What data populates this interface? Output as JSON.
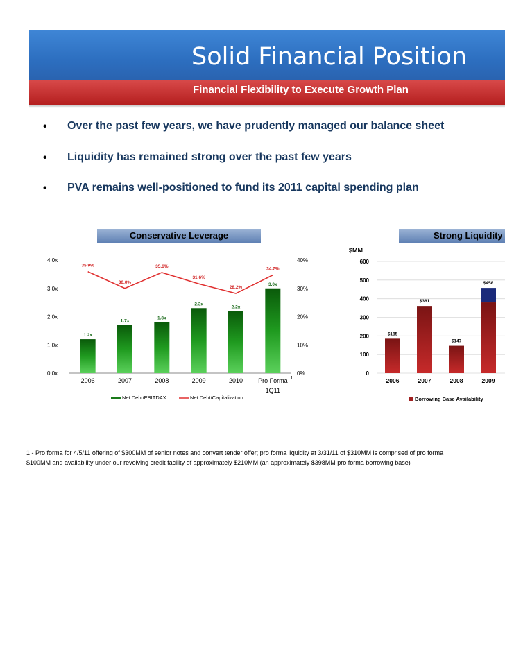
{
  "header": {
    "title": "Solid Financial Position",
    "subtitle": "Financial Flexibility to Execute Growth Plan"
  },
  "bullets": [
    {
      "marker": "•",
      "text": "Over the past few years, we have prudently managed our balance sheet"
    },
    {
      "marker": "•",
      "text": "Liquidity has remained strong over the past few years"
    },
    {
      "marker": "•",
      "text": "PVA remains well-positioned to fund its 2011 capital spending plan"
    }
  ],
  "footnote": {
    "line1": "1 - Pro forma for 4/5/11 offering of $300MM of senior notes and convert tender offer; pro forma liquidity at 3/31/11 of $310MM is comprised of pro forma",
    "line2": "$100MM and availability under our revolving credit facility of approximately $210MM (an approximately $398MM pro forma borrowing base)"
  },
  "colors": {
    "title_blue": "#2d6fc0",
    "subtitle_red": "#c0292a",
    "bar_green": "#1a8a1a",
    "line_red": "#e03030",
    "bar_maroon": "#8b1a1a",
    "bar_navy": "#1a2a7a"
  },
  "chart_data": [
    {
      "type": "bar",
      "title": "Conservative Leverage",
      "categories": [
        "2006",
        "2007",
        "2008",
        "2009",
        "2010",
        "Pro Forma 1Q11"
      ],
      "category_labels": [
        "2006",
        "2007",
        "2008",
        "2009",
        "2010",
        "Pro Forma"
      ],
      "category_sublabels": [
        "",
        "",
        "",
        "",
        "",
        "1Q11"
      ],
      "category_footnotes": [
        "",
        "",
        "",
        "",
        "",
        "1"
      ],
      "series": [
        {
          "name": "Net Debt/EBITDAX",
          "type": "bar",
          "axis": "left",
          "values": [
            1.2,
            1.7,
            1.8,
            2.3,
            2.2,
            3.0
          ],
          "labels": [
            "1.2x",
            "1.7x",
            "1.8x",
            "2.3x",
            "2.2x",
            "3.0x"
          ]
        },
        {
          "name": "Net Debt/Capitalization",
          "type": "line",
          "axis": "right",
          "values": [
            35.9,
            30.0,
            35.6,
            31.6,
            28.2,
            34.7
          ],
          "labels": [
            "35.9%",
            "30.0%",
            "35.6%",
            "31.6%",
            "28.2%",
            "34.7%"
          ]
        }
      ],
      "left_axis": {
        "ylim": [
          0,
          4
        ],
        "ticks": [
          "0.0x",
          "1.0x",
          "2.0x",
          "3.0x",
          "4.0x"
        ]
      },
      "right_axis": {
        "ylim": [
          0,
          40
        ],
        "ticks": [
          "0%",
          "10%",
          "20%",
          "30%",
          "40%"
        ]
      },
      "legend": "bottom"
    },
    {
      "type": "bar",
      "title": "Strong Liquidity",
      "ylabel": "$MM",
      "categories": [
        "2006",
        "2007",
        "2008",
        "2009"
      ],
      "series": [
        {
          "name": "Borrowing Base Availability",
          "values": [
            185,
            361,
            147,
            380
          ]
        },
        {
          "name": "",
          "values": [
            0,
            0,
            0,
            78
          ]
        }
      ],
      "labels": [
        "$185",
        "$361",
        "$147",
        "$458"
      ],
      "ylim": [
        0,
        600
      ],
      "ticks": [
        "0",
        "100",
        "200",
        "300",
        "400",
        "500",
        "600"
      ],
      "legend": "bottom"
    }
  ]
}
